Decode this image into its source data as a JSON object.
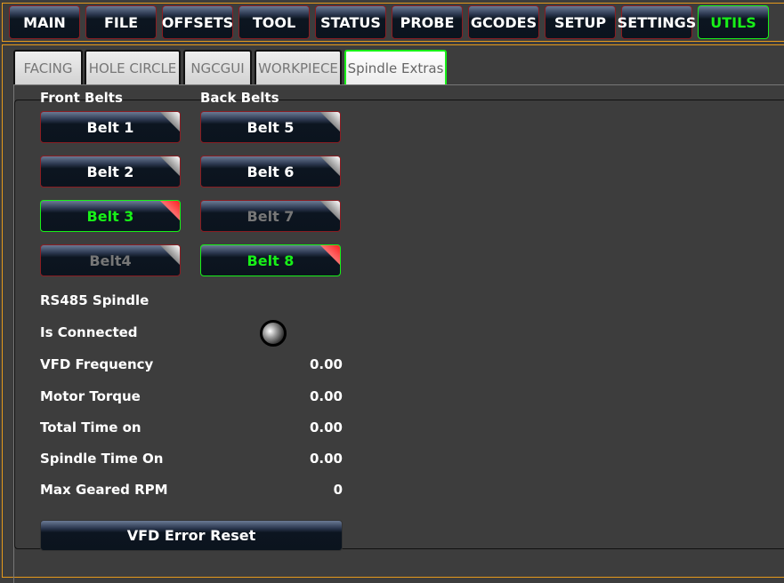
{
  "nav": [
    {
      "label": "MAIN"
    },
    {
      "label": "FILE"
    },
    {
      "label": "OFFSETS"
    },
    {
      "label": "TOOL"
    },
    {
      "label": "STATUS"
    },
    {
      "label": "PROBE"
    },
    {
      "label": "GCODES"
    },
    {
      "label": "SETUP"
    },
    {
      "label": "SETTINGS"
    },
    {
      "label": "UTILS",
      "active": true
    }
  ],
  "tabs": [
    {
      "label": "FACING"
    },
    {
      "label": "HOLE CIRCLE"
    },
    {
      "label": "NGCGUI"
    },
    {
      "label": "WORKPIECE"
    },
    {
      "label": "Spindle Extras",
      "active": true
    }
  ],
  "front_belts": {
    "title": "Front Belts",
    "items": [
      {
        "label": "Belt 1",
        "state": "normal"
      },
      {
        "label": "Belt 2",
        "state": "normal"
      },
      {
        "label": "Belt 3",
        "state": "active"
      },
      {
        "label": "Belt4",
        "state": "disabled"
      }
    ]
  },
  "back_belts": {
    "title": "Back Belts",
    "items": [
      {
        "label": "Belt 5",
        "state": "normal"
      },
      {
        "label": "Belt 6",
        "state": "normal"
      },
      {
        "label": "Belt 7",
        "state": "disabled"
      },
      {
        "label": "Belt 8",
        "state": "active"
      }
    ]
  },
  "rs485": {
    "title": "RS485 Spindle",
    "connected_label": "Is Connected",
    "connected": false,
    "rows": [
      {
        "label": "VFD Frequency",
        "value": "0.00"
      },
      {
        "label": "Motor Torque",
        "value": "0.00"
      },
      {
        "label": "Total Time on",
        "value": "0.00"
      },
      {
        "label": "Spindle Time On",
        "value": "0.00"
      },
      {
        "label": "Max Geared RPM",
        "value": "0"
      }
    ],
    "reset_label": "VFD Error Reset"
  },
  "colors": {
    "accent": "#18f018",
    "border": "#e69a1c"
  }
}
